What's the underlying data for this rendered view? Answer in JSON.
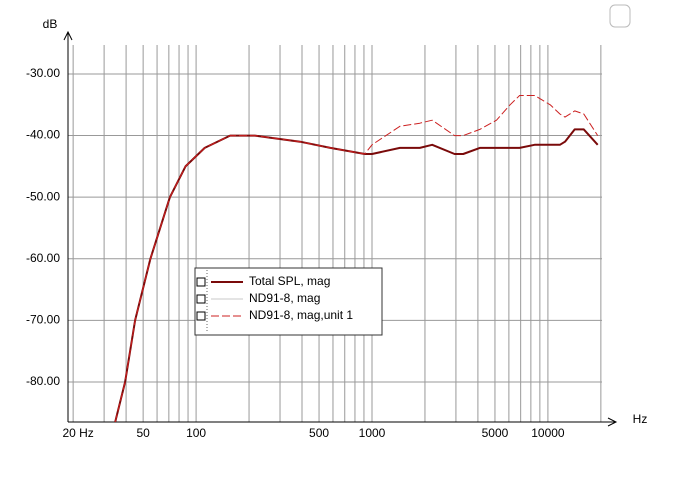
{
  "chart_data": {
    "type": "line",
    "y_label": "dB",
    "x_label": "Hz",
    "log_x": true,
    "xlim": [
      18.7,
      20300
    ],
    "ylim": [
      -86.5,
      -25.3
    ],
    "xticks": [
      {
        "value": 20,
        "label": "20 Hz"
      },
      50,
      100,
      500,
      1000,
      5000,
      10000
    ],
    "xgrid": [
      20,
      30,
      40,
      50,
      60,
      70,
      80,
      90,
      100,
      200,
      300,
      400,
      500,
      600,
      700,
      800,
      900,
      1000,
      2000,
      3000,
      4000,
      5000,
      6000,
      7000,
      8000,
      9000,
      10000,
      20000
    ],
    "yticks": [
      {
        "value": -30,
        "label": "-30.00"
      },
      {
        "value": -40,
        "label": "-40.00"
      },
      {
        "value": -50,
        "label": "-50.00"
      },
      {
        "value": -60,
        "label": "-60.00"
      },
      {
        "value": -70,
        "label": "-70.00"
      },
      {
        "value": -80,
        "label": "-80.00"
      }
    ],
    "grid": true,
    "x": [
      34.7,
      39.5,
      45,
      55,
      71,
      87,
      112,
      156,
      216,
      390,
      580,
      910,
      1000,
      1440,
      1870,
      2200,
      2950,
      3300,
      4100,
      5100,
      6100,
      6900,
      8400,
      10300,
      11700,
      12500,
      14200,
      16000,
      19200
    ],
    "series": [
      {
        "name": "Total SPL, mag",
        "color": "#7a0a0a",
        "dash": false,
        "width": 2,
        "values": [
          -86.5,
          -80,
          -70,
          -60,
          -50,
          -45,
          -42,
          -40,
          -40,
          -41,
          -42,
          -43,
          -43,
          -42,
          -42,
          -41.5,
          -43,
          -43,
          -42,
          -42,
          -42,
          -42,
          -41.5,
          -41.5,
          -41.5,
          -41,
          -39,
          -39,
          -41.5
        ]
      },
      {
        "name": "ND91-8, mag",
        "color": "#c8c8c8",
        "dash": false,
        "width": 1,
        "values": [
          -86.5,
          -80,
          -70,
          -60,
          -50,
          -45,
          -42,
          -40,
          -40,
          -41,
          -42,
          -43,
          -43,
          -42,
          -42,
          -41.5,
          -43,
          -43,
          -42,
          -42,
          -42,
          -42,
          -41.5,
          -41.5,
          -41.5,
          -41,
          -39,
          -39,
          -41.5
        ]
      },
      {
        "name": "ND91-8, mag,unit 1",
        "color": "#cc2020",
        "dash": true,
        "width": 1,
        "values": [
          -86.5,
          -80,
          -70,
          -60,
          -50,
          -45,
          -42,
          -40,
          -40,
          -41,
          -42,
          -43,
          -41.5,
          -38.5,
          -38,
          -37.5,
          -40,
          -40,
          -39,
          -37.5,
          -35,
          -33.5,
          -33.5,
          -35,
          -36.5,
          -37,
          -36,
          -36.5,
          -40
        ]
      }
    ]
  }
}
